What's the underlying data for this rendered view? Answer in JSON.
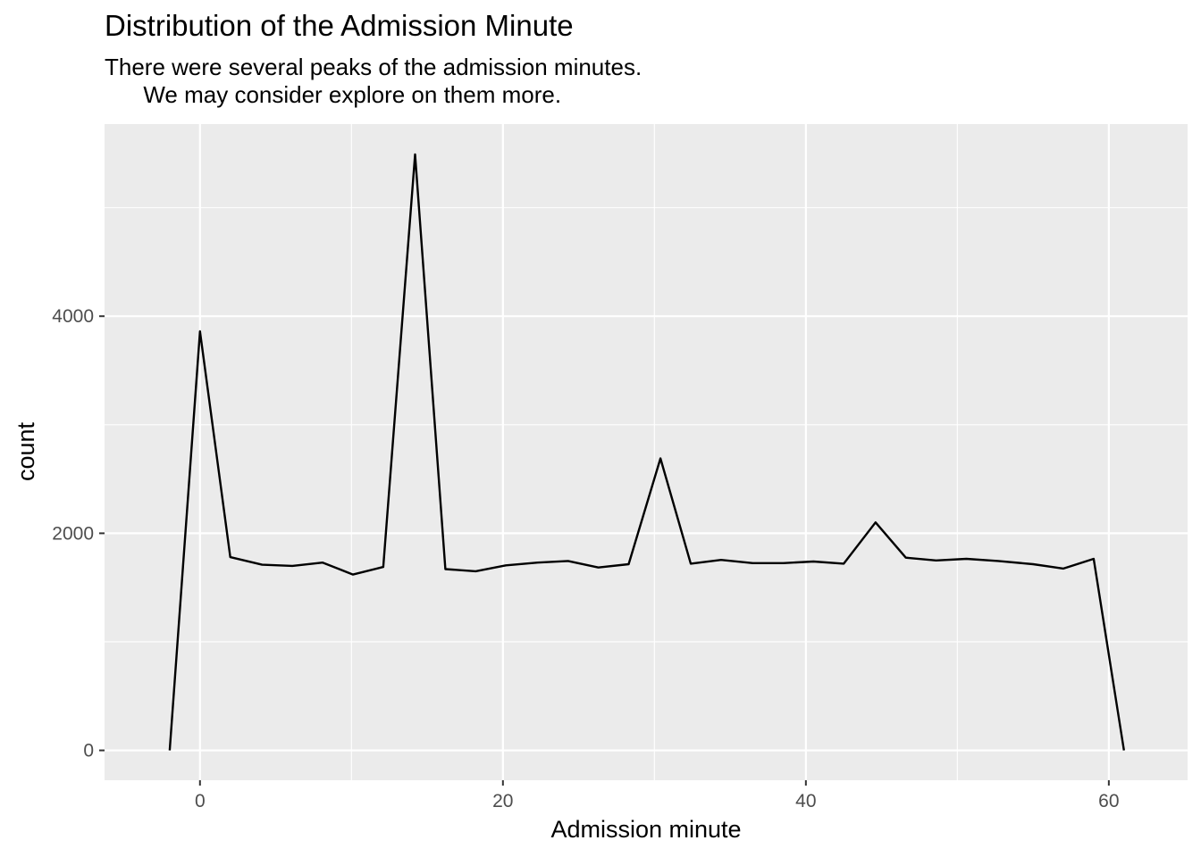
{
  "chart_data": {
    "type": "line",
    "title": "Distribution of the Admission Minute",
    "subtitle": "There were several peaks of the admission minutes.\n      We may consider explore on them more.",
    "xlabel": "Admission minute",
    "ylabel": "count",
    "xlim": [
      -6.3,
      65.2
    ],
    "ylim": [
      -275,
      5770
    ],
    "x_ticks": [
      0,
      20,
      40,
      60
    ],
    "y_ticks": [
      0,
      2000,
      4000
    ],
    "grid": true,
    "panel_background": "#EBEBEB",
    "line_color": "#000000",
    "series": [
      {
        "x": [
          -2.0,
          0.0,
          2.0,
          4.1,
          6.1,
          8.1,
          10.1,
          12.1,
          14.2,
          16.2,
          18.2,
          20.2,
          22.3,
          24.3,
          26.3,
          28.3,
          30.4,
          32.4,
          34.4,
          36.5,
          38.5,
          40.5,
          42.5,
          44.6,
          46.6,
          48.6,
          50.6,
          52.7,
          55.0,
          57.0,
          59.0,
          61.0
        ],
        "y": [
          0,
          3860,
          1780,
          1710,
          1700,
          1730,
          1620,
          1690,
          5490,
          1670,
          1650,
          1705,
          1730,
          1745,
          1685,
          1715,
          2690,
          1720,
          1755,
          1725,
          1725,
          1740,
          1720,
          2100,
          1775,
          1750,
          1765,
          1745,
          1715,
          1675,
          1765,
          0
        ]
      }
    ]
  }
}
